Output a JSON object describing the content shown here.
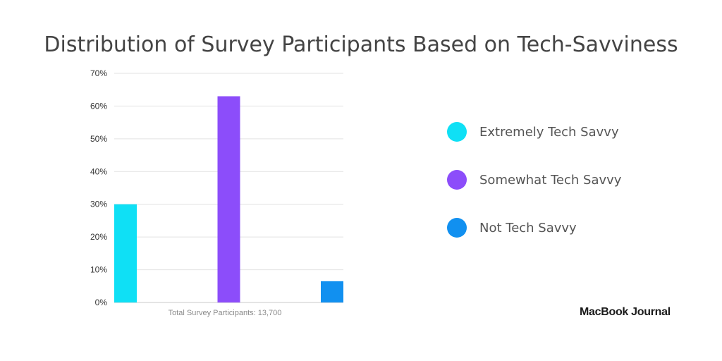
{
  "chart_data": {
    "type": "bar",
    "title": "Distribution of Survey Participants Based on Tech-Savviness",
    "xlabel": "Total Survey Participants: 13,700",
    "ylabel": "",
    "ylim": [
      0,
      70
    ],
    "yticks": [
      "0%",
      "10%",
      "20%",
      "30%",
      "40%",
      "50%",
      "60%",
      "70%"
    ],
    "ytick_values": [
      0,
      10,
      20,
      30,
      40,
      50,
      60,
      70
    ],
    "grid": true,
    "legend_position": "right",
    "categories": [
      "Extremely Tech Savvy",
      "Somewhat Tech Savvy",
      "Not Tech Savvy"
    ],
    "values": [
      30,
      63,
      6.5
    ],
    "colors": [
      "#0fe0f5",
      "#8c4dfa",
      "#1190f0"
    ]
  },
  "brand": "MacBook Journal"
}
